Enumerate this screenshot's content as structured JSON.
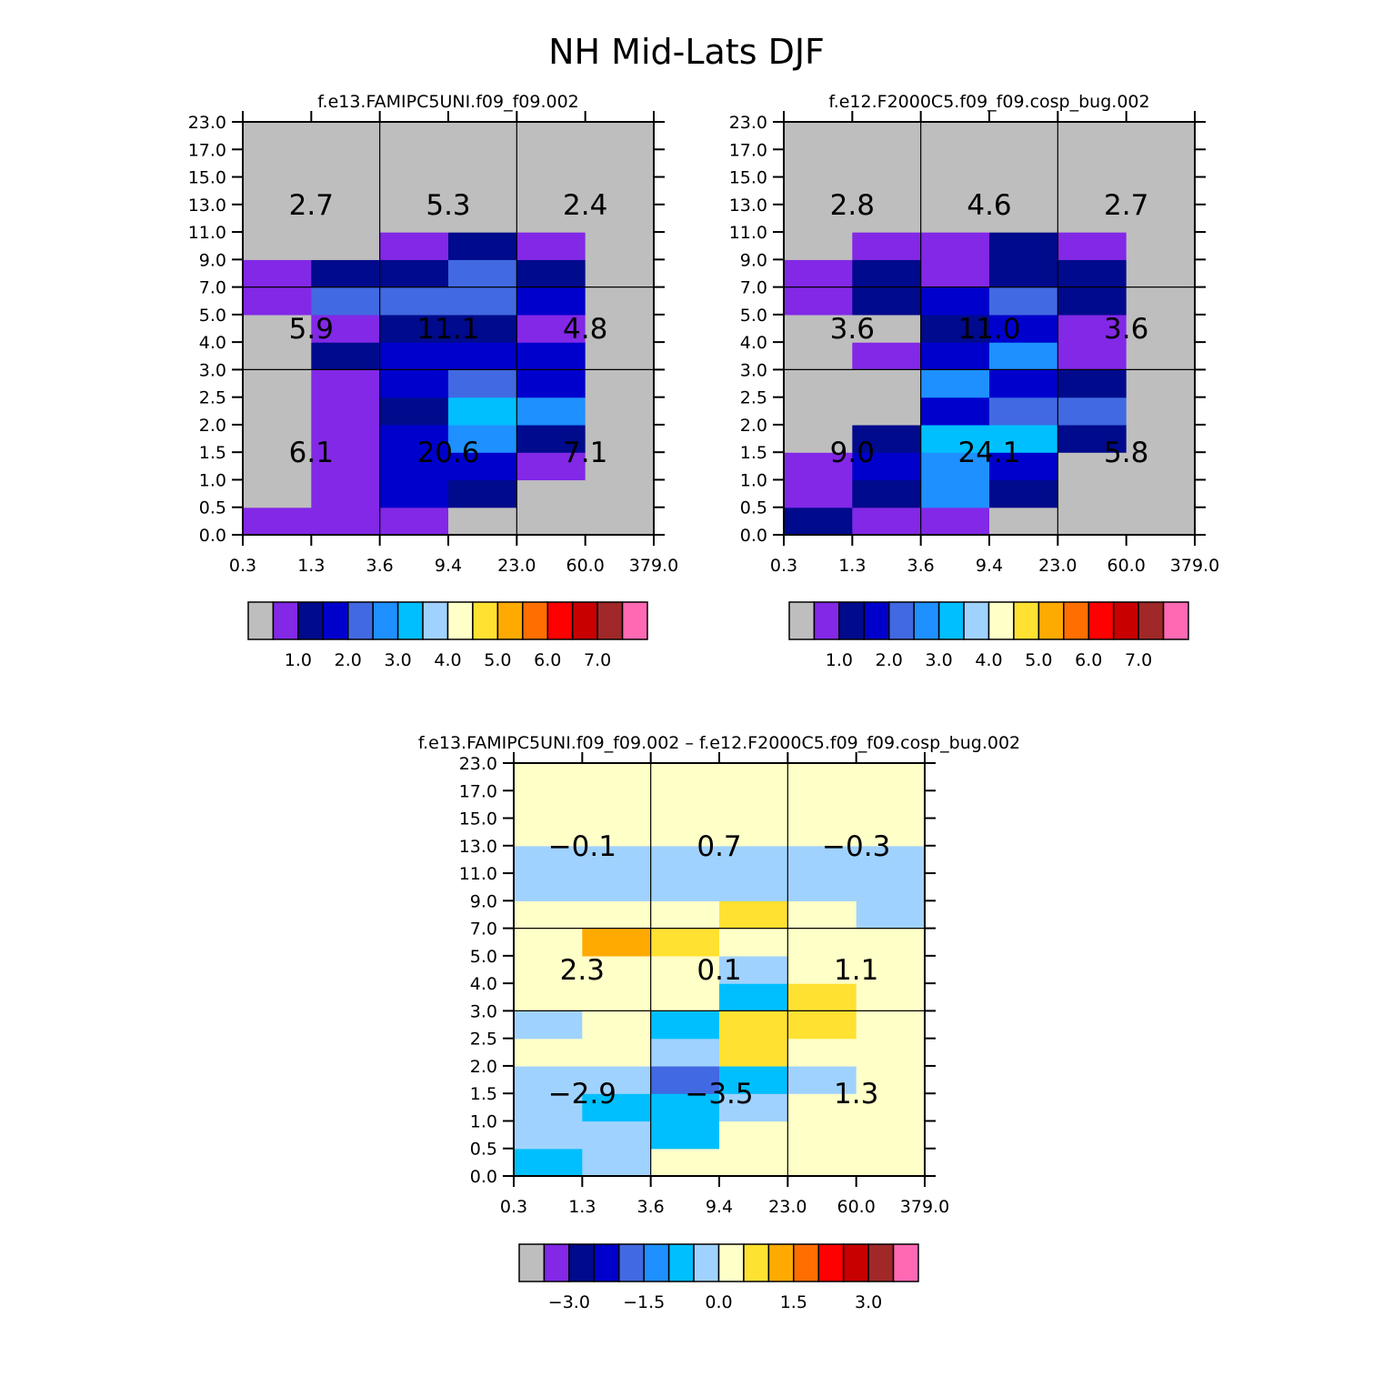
{
  "main_title": "NH Mid-Lats DJF",
  "palette_colors": [
    "#bebebe",
    "#8228e6",
    "#000a8c",
    "#0000cd",
    "#4169e1",
    "#1e90ff",
    "#00bfff",
    "#a0d2ff",
    "#ffffc8",
    "#ffe132",
    "#ffaa00",
    "#ff6e00",
    "#ff0000",
    "#c80000",
    "#a02828",
    "#ff69b4"
  ],
  "chart_data": [
    {
      "type": "heatmap",
      "title": "f.e13.FAMIPC5UNI.f09_f09.002",
      "x_tick_labels": [
        "0.3",
        "1.3",
        "3.6",
        "9.4",
        "23.0",
        "60.0",
        "379.0"
      ],
      "y_tick_labels": [
        "0.0",
        "0.5",
        "1.0",
        "1.5",
        "2.0",
        "2.5",
        "3.0",
        "4.0",
        "5.0",
        "7.0",
        "9.0",
        "11.0",
        "13.0",
        "15.0",
        "17.0",
        "23.0"
      ],
      "cells": [
        [
          "#8228e6",
          "#8228e6",
          "#8228e6",
          "#bebebe",
          "#bebebe",
          "#bebebe"
        ],
        [
          "#bebebe",
          "#8228e6",
          "#0000cd",
          "#000a8c",
          "#bebebe",
          "#bebebe"
        ],
        [
          "#bebebe",
          "#8228e6",
          "#0000cd",
          "#0000cd",
          "#8228e6",
          "#bebebe"
        ],
        [
          "#bebebe",
          "#8228e6",
          "#0000cd",
          "#1e90ff",
          "#000a8c",
          "#bebebe"
        ],
        [
          "#bebebe",
          "#8228e6",
          "#000a8c",
          "#00bfff",
          "#1e90ff",
          "#bebebe"
        ],
        [
          "#bebebe",
          "#8228e6",
          "#0000cd",
          "#4169e1",
          "#0000cd",
          "#bebebe"
        ],
        [
          "#bebebe",
          "#000a8c",
          "#0000cd",
          "#0000cd",
          "#0000cd",
          "#bebebe"
        ],
        [
          "#bebebe",
          "#8228e6",
          "#000a8c",
          "#000a8c",
          "#8228e6",
          "#bebebe"
        ],
        [
          "#8228e6",
          "#4169e1",
          "#4169e1",
          "#4169e1",
          "#0000cd",
          "#bebebe"
        ],
        [
          "#8228e6",
          "#000a8c",
          "#000a8c",
          "#4169e1",
          "#000a8c",
          "#bebebe"
        ],
        [
          "#bebebe",
          "#bebebe",
          "#8228e6",
          "#000a8c",
          "#8228e6",
          "#bebebe"
        ],
        [
          "#bebebe",
          "#bebebe",
          "#bebebe",
          "#bebebe",
          "#bebebe",
          "#bebebe"
        ],
        [
          "#bebebe",
          "#bebebe",
          "#bebebe",
          "#bebebe",
          "#bebebe",
          "#bebebe"
        ],
        [
          "#bebebe",
          "#bebebe",
          "#bebebe",
          "#bebebe",
          "#bebebe",
          "#bebebe"
        ],
        [
          "#bebebe",
          "#bebebe",
          "#bebebe",
          "#bebebe",
          "#bebebe",
          "#bebebe"
        ]
      ],
      "block_labels": [
        [
          "6.1",
          "20.6",
          "7.1"
        ],
        [
          "5.9",
          "11.1",
          "4.8"
        ],
        [
          "2.7",
          "5.3",
          "2.4"
        ]
      ],
      "colorbar": {
        "colors": [
          "#bebebe",
          "#8228e6",
          "#000a8c",
          "#0000cd",
          "#4169e1",
          "#1e90ff",
          "#00bfff",
          "#a0d2ff",
          "#ffffc8",
          "#ffe132",
          "#ffaa00",
          "#ff6e00",
          "#ff0000",
          "#c80000",
          "#a02828",
          "#ff69b4"
        ],
        "labels": [
          "1.0",
          "2.0",
          "3.0",
          "4.0",
          "5.0",
          "6.0",
          "7.0"
        ],
        "label_boundaries": [
          2,
          4,
          6,
          8,
          10,
          12,
          14
        ]
      }
    },
    {
      "type": "heatmap",
      "title": "f.e12.F2000C5.f09_f09.cosp_bug.002",
      "x_tick_labels": [
        "0.3",
        "1.3",
        "3.6",
        "9.4",
        "23.0",
        "60.0",
        "379.0"
      ],
      "y_tick_labels": [
        "0.0",
        "0.5",
        "1.0",
        "1.5",
        "2.0",
        "2.5",
        "3.0",
        "4.0",
        "5.0",
        "7.0",
        "9.0",
        "11.0",
        "13.0",
        "15.0",
        "17.0",
        "23.0"
      ],
      "cells": [
        [
          "#000a8c",
          "#8228e6",
          "#8228e6",
          "#bebebe",
          "#bebebe",
          "#bebebe"
        ],
        [
          "#8228e6",
          "#000a8c",
          "#1e90ff",
          "#000a8c",
          "#bebebe",
          "#bebebe"
        ],
        [
          "#8228e6",
          "#0000cd",
          "#1e90ff",
          "#0000cd",
          "#bebebe",
          "#bebebe"
        ],
        [
          "#bebebe",
          "#000a8c",
          "#00bfff",
          "#00bfff",
          "#000a8c",
          "#bebebe"
        ],
        [
          "#bebebe",
          "#bebebe",
          "#0000cd",
          "#4169e1",
          "#4169e1",
          "#bebebe"
        ],
        [
          "#bebebe",
          "#bebebe",
          "#1e90ff",
          "#0000cd",
          "#000a8c",
          "#bebebe"
        ],
        [
          "#bebebe",
          "#8228e6",
          "#0000cd",
          "#1e90ff",
          "#8228e6",
          "#bebebe"
        ],
        [
          "#bebebe",
          "#bebebe",
          "#000a8c",
          "#0000cd",
          "#8228e6",
          "#bebebe"
        ],
        [
          "#8228e6",
          "#000a8c",
          "#0000cd",
          "#4169e1",
          "#000a8c",
          "#bebebe"
        ],
        [
          "#8228e6",
          "#000a8c",
          "#8228e6",
          "#000a8c",
          "#000a8c",
          "#bebebe"
        ],
        [
          "#bebebe",
          "#8228e6",
          "#8228e6",
          "#000a8c",
          "#8228e6",
          "#bebebe"
        ],
        [
          "#bebebe",
          "#bebebe",
          "#bebebe",
          "#bebebe",
          "#bebebe",
          "#bebebe"
        ],
        [
          "#bebebe",
          "#bebebe",
          "#bebebe",
          "#bebebe",
          "#bebebe",
          "#bebebe"
        ],
        [
          "#bebebe",
          "#bebebe",
          "#bebebe",
          "#bebebe",
          "#bebebe",
          "#bebebe"
        ],
        [
          "#bebebe",
          "#bebebe",
          "#bebebe",
          "#bebebe",
          "#bebebe",
          "#bebebe"
        ]
      ],
      "block_labels": [
        [
          "9.0",
          "24.1",
          "5.8"
        ],
        [
          "3.6",
          "11.0",
          "3.6"
        ],
        [
          "2.8",
          "4.6",
          "2.7"
        ]
      ],
      "colorbar": {
        "colors": [
          "#bebebe",
          "#8228e6",
          "#000a8c",
          "#0000cd",
          "#4169e1",
          "#1e90ff",
          "#00bfff",
          "#a0d2ff",
          "#ffffc8",
          "#ffe132",
          "#ffaa00",
          "#ff6e00",
          "#ff0000",
          "#c80000",
          "#a02828",
          "#ff69b4"
        ],
        "labels": [
          "1.0",
          "2.0",
          "3.0",
          "4.0",
          "5.0",
          "6.0",
          "7.0"
        ],
        "label_boundaries": [
          2,
          4,
          6,
          8,
          10,
          12,
          14
        ]
      }
    },
    {
      "type": "heatmap",
      "title": "f.e13.FAMIPC5UNI.f09_f09.002 – f.e12.F2000C5.f09_f09.cosp_bug.002",
      "x_tick_labels": [
        "0.3",
        "1.3",
        "3.6",
        "9.4",
        "23.0",
        "60.0",
        "379.0"
      ],
      "y_tick_labels": [
        "0.0",
        "0.5",
        "1.0",
        "1.5",
        "2.0",
        "2.5",
        "3.0",
        "4.0",
        "5.0",
        "7.0",
        "9.0",
        "11.0",
        "13.0",
        "15.0",
        "17.0",
        "23.0"
      ],
      "cells": [
        [
          "#00bfff",
          "#a0d2ff",
          "#ffffc8",
          "#ffffc8",
          "#ffffc8",
          "#ffffc8"
        ],
        [
          "#a0d2ff",
          "#a0d2ff",
          "#00bfff",
          "#ffffc8",
          "#ffffc8",
          "#ffffc8"
        ],
        [
          "#a0d2ff",
          "#00bfff",
          "#00bfff",
          "#a0d2ff",
          "#ffffc8",
          "#ffffc8"
        ],
        [
          "#a0d2ff",
          "#a0d2ff",
          "#4169e1",
          "#00bfff",
          "#a0d2ff",
          "#ffffc8"
        ],
        [
          "#ffffc8",
          "#ffffc8",
          "#a0d2ff",
          "#ffe132",
          "#ffffc8",
          "#ffffc8"
        ],
        [
          "#a0d2ff",
          "#ffffc8",
          "#00bfff",
          "#ffe132",
          "#ffe132",
          "#ffffc8"
        ],
        [
          "#ffffc8",
          "#ffffc8",
          "#ffffc8",
          "#00bfff",
          "#ffe132",
          "#ffffc8"
        ],
        [
          "#ffffc8",
          "#ffffc8",
          "#ffffc8",
          "#a0d2ff",
          "#ffffc8",
          "#ffffc8"
        ],
        [
          "#ffffc8",
          "#ffaa00",
          "#ffe132",
          "#ffffc8",
          "#ffffc8",
          "#ffffc8"
        ],
        [
          "#ffffc8",
          "#ffffc8",
          "#ffffc8",
          "#ffe132",
          "#ffffc8",
          "#a0d2ff"
        ],
        [
          "#a0d2ff",
          "#a0d2ff",
          "#a0d2ff",
          "#a0d2ff",
          "#a0d2ff",
          "#a0d2ff"
        ],
        [
          "#a0d2ff",
          "#a0d2ff",
          "#a0d2ff",
          "#a0d2ff",
          "#a0d2ff",
          "#a0d2ff"
        ],
        [
          "#ffffc8",
          "#ffffc8",
          "#ffffc8",
          "#ffffc8",
          "#ffffc8",
          "#ffffc8"
        ],
        [
          "#ffffc8",
          "#ffffc8",
          "#ffffc8",
          "#ffffc8",
          "#ffffc8",
          "#ffffc8"
        ],
        [
          "#ffffc8",
          "#ffffc8",
          "#ffffc8",
          "#ffffc8",
          "#ffffc8",
          "#ffffc8"
        ]
      ],
      "block_labels": [
        [
          "−2.9",
          "−3.5",
          "1.3"
        ],
        [
          "2.3",
          "0.1",
          "1.1"
        ],
        [
          "−0.1",
          "0.7",
          "−0.3"
        ]
      ],
      "colorbar": {
        "colors": [
          "#bebebe",
          "#8228e6",
          "#000a8c",
          "#0000cd",
          "#4169e1",
          "#1e90ff",
          "#00bfff",
          "#a0d2ff",
          "#ffffc8",
          "#ffe132",
          "#ffaa00",
          "#ff6e00",
          "#ff0000",
          "#c80000",
          "#a02828",
          "#ff69b4"
        ],
        "labels": [
          "−3.0",
          "−1.5",
          "0.0",
          "1.5",
          "3.0"
        ],
        "label_boundaries": [
          2,
          5,
          8,
          11,
          14
        ]
      }
    }
  ]
}
